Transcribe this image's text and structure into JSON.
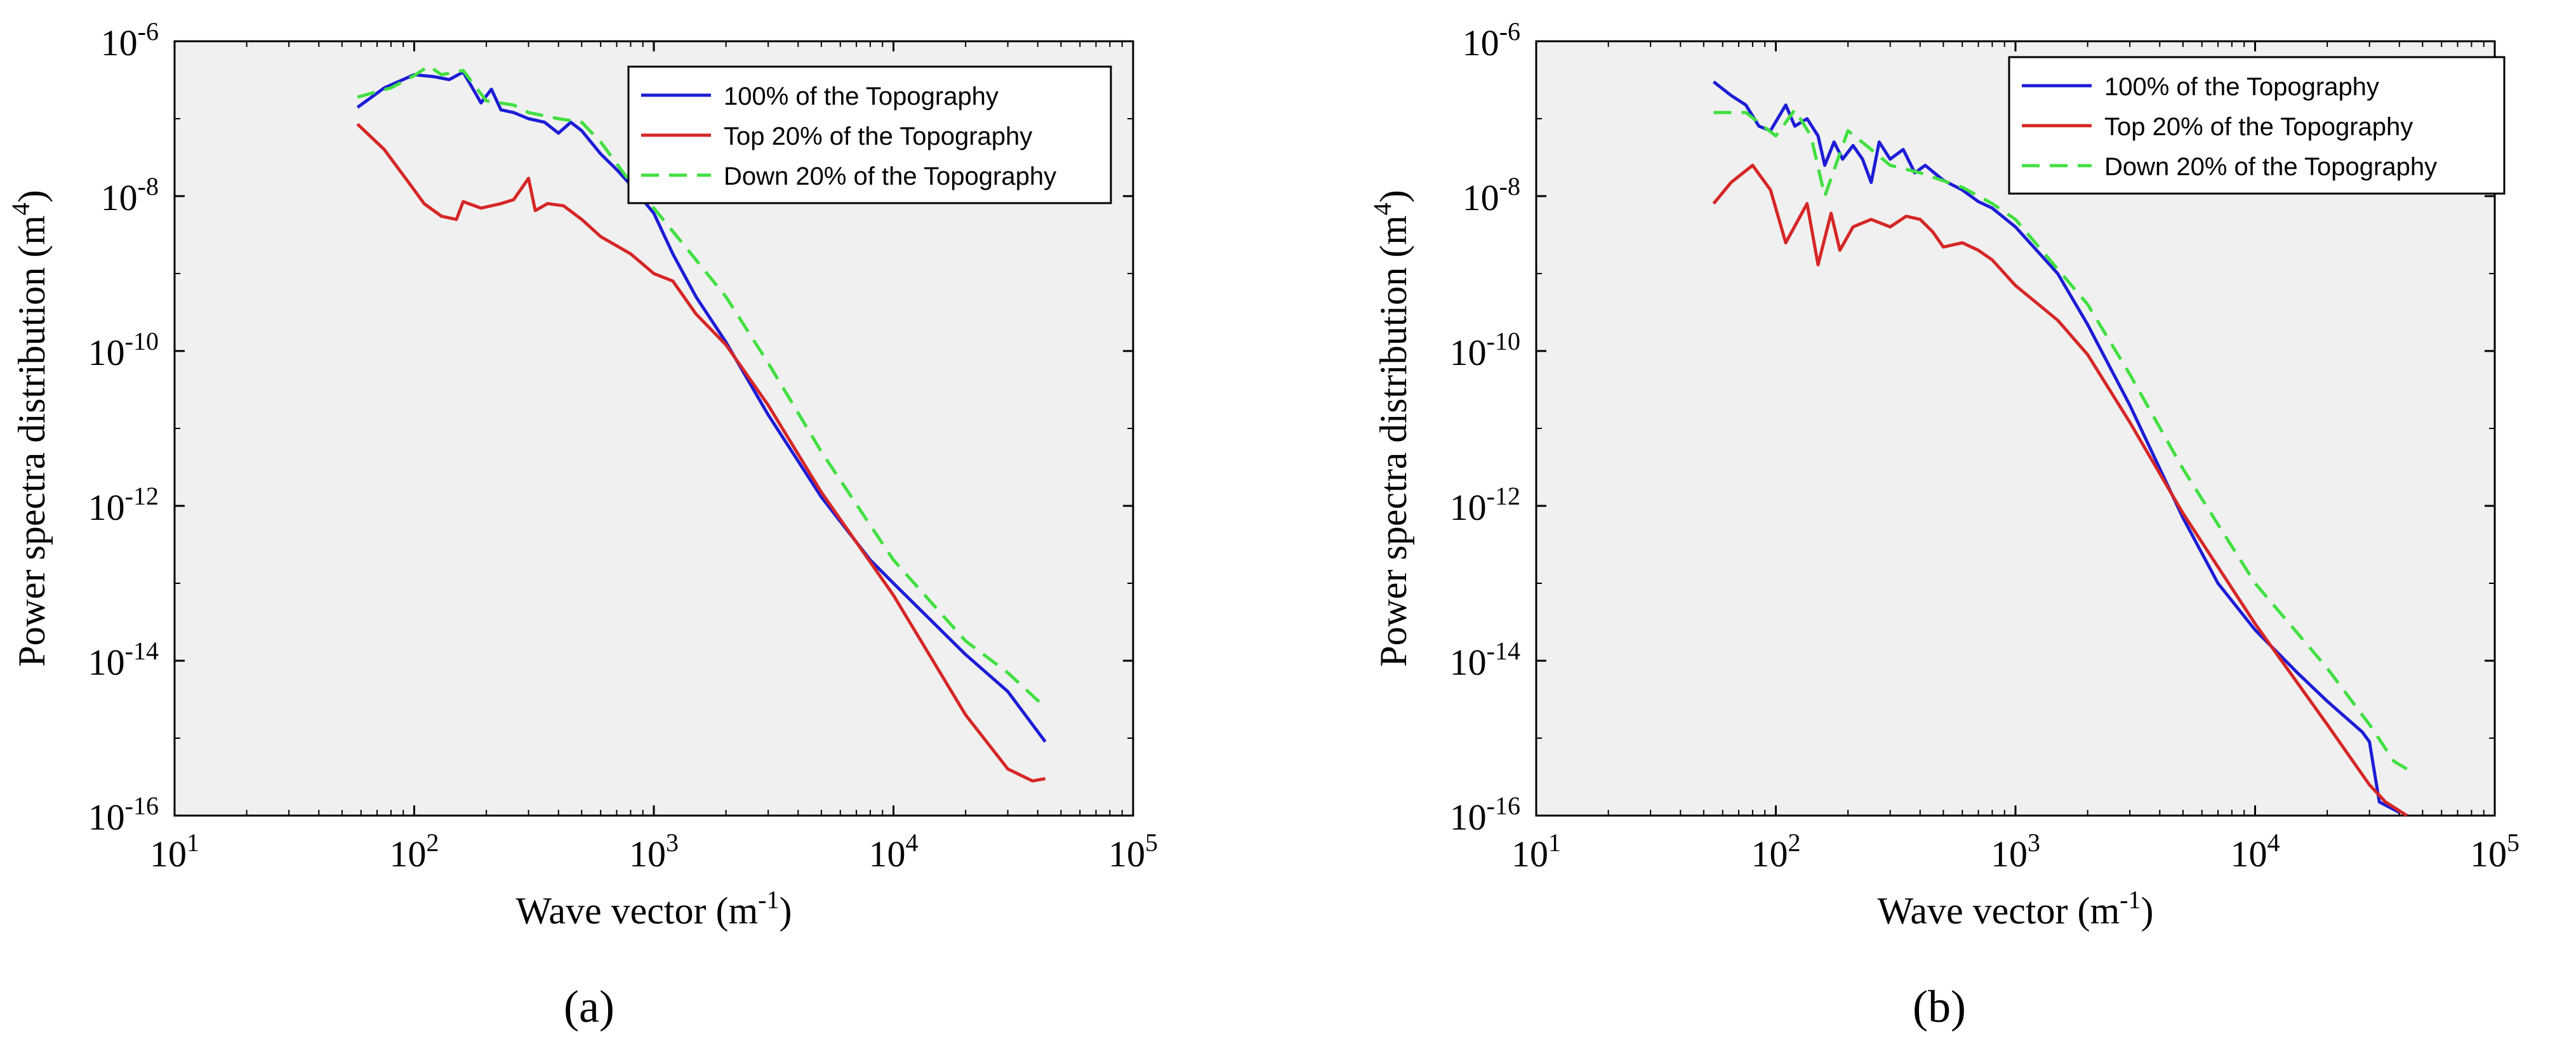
{
  "figure": {
    "panels": [
      {
        "label": "a",
        "caption": "(a)"
      },
      {
        "label": "b",
        "caption": "(b)"
      }
    ]
  },
  "chart_data": [
    {
      "panel": "a",
      "type": "line",
      "xscale": "log",
      "yscale": "log",
      "xlabel": "Wave vector (m",
      "xlabel_sup": "-1",
      "xlabel_end": ")",
      "ylabel": "Power spectra distribution (m",
      "ylabel_sup": "4",
      "ylabel_end": ")",
      "xlim": [
        10,
        100000
      ],
      "ylim": [
        1e-16,
        1e-06
      ],
      "xticks": [
        {
          "value": 10,
          "base": "10",
          "exp": "1"
        },
        {
          "value": 100,
          "base": "10",
          "exp": "2"
        },
        {
          "value": 1000,
          "base": "10",
          "exp": "3"
        },
        {
          "value": 10000,
          "base": "10",
          "exp": "4"
        },
        {
          "value": 100000,
          "base": "10",
          "exp": "5"
        }
      ],
      "yticks": [
        {
          "value": 1e-16,
          "base": "10",
          "exp": "-16"
        },
        {
          "value": 1e-14,
          "base": "10",
          "exp": "-14"
        },
        {
          "value": 1e-12,
          "base": "10",
          "exp": "-12"
        },
        {
          "value": 1e-10,
          "base": "10",
          "exp": "-10"
        },
        {
          "value": 1e-08,
          "base": "10",
          "exp": "-8"
        },
        {
          "value": 1e-06,
          "base": "10",
          "exp": "-6"
        }
      ],
      "legend_position": "top-right",
      "series": [
        {
          "name": "100% of the Topography",
          "color": "#1c1cd6",
          "dash": "solid",
          "points": [
            [
              58,
              1.4e-07
            ],
            [
              75,
              2.5e-07
            ],
            [
              100,
              3.7e-07
            ],
            [
              120,
              3.5e-07
            ],
            [
              140,
              3.2e-07
            ],
            [
              160,
              4e-07
            ],
            [
              175,
              2.5e-07
            ],
            [
              190,
              1.6e-07
            ],
            [
              210,
              2.4e-07
            ],
            [
              230,
              1.3e-07
            ],
            [
              260,
              1.2e-07
            ],
            [
              300,
              1e-07
            ],
            [
              350,
              9e-08
            ],
            [
              400,
              6.5e-08
            ],
            [
              450,
              9e-08
            ],
            [
              500,
              7e-08
            ],
            [
              600,
              3.5e-08
            ],
            [
              700,
              2.2e-08
            ],
            [
              800,
              1.4e-08
            ],
            [
              1000,
              6e-09
            ],
            [
              1200,
              1.8e-09
            ],
            [
              1500,
              5e-10
            ],
            [
              2000,
              1.3e-10
            ],
            [
              3000,
              1.5e-11
            ],
            [
              5000,
              1.3e-12
            ],
            [
              8000,
              2e-13
            ],
            [
              10000,
              1e-13
            ],
            [
              20000,
              1.2e-14
            ],
            [
              30000,
              4e-15
            ],
            [
              43000,
              9e-16
            ]
          ]
        },
        {
          "name": "Top 20% of the Topography",
          "color": "#d62626",
          "dash": "solid",
          "points": [
            [
              58,
              8.5e-08
            ],
            [
              75,
              4e-08
            ],
            [
              100,
              1.2e-08
            ],
            [
              110,
              8e-09
            ],
            [
              130,
              5.5e-09
            ],
            [
              150,
              5e-09
            ],
            [
              160,
              8.5e-09
            ],
            [
              190,
              7e-09
            ],
            [
              230,
              8e-09
            ],
            [
              260,
              9e-09
            ],
            [
              300,
              1.7e-08
            ],
            [
              320,
              6.5e-09
            ],
            [
              360,
              8e-09
            ],
            [
              420,
              7.5e-09
            ],
            [
              500,
              5e-09
            ],
            [
              600,
              3e-09
            ],
            [
              800,
              1.8e-09
            ],
            [
              1000,
              1e-09
            ],
            [
              1200,
              8e-10
            ],
            [
              1500,
              3e-10
            ],
            [
              2000,
              1.2e-10
            ],
            [
              3000,
              2e-11
            ],
            [
              5000,
              1.5e-12
            ],
            [
              10000,
              7e-14
            ],
            [
              20000,
              2e-15
            ],
            [
              30000,
              4e-16
            ],
            [
              38000,
              2.8e-16
            ],
            [
              43000,
              3e-16
            ]
          ]
        },
        {
          "name": "Down 20% of the Topography",
          "color": "#40e040",
          "dash": "dashed",
          "points": [
            [
              58,
              1.9e-07
            ],
            [
              80,
              2.5e-07
            ],
            [
              100,
              3.6e-07
            ],
            [
              115,
              4.8e-07
            ],
            [
              130,
              3.7e-07
            ],
            [
              160,
              4.2e-07
            ],
            [
              200,
              1.7e-07
            ],
            [
              260,
              1.5e-07
            ],
            [
              300,
              1.2e-07
            ],
            [
              400,
              1e-07
            ],
            [
              500,
              9e-08
            ],
            [
              600,
              5e-08
            ],
            [
              800,
              1.5e-08
            ],
            [
              1000,
              7e-09
            ],
            [
              1500,
              1.5e-09
            ],
            [
              2000,
              5e-10
            ],
            [
              3000,
              7e-11
            ],
            [
              5000,
              5e-12
            ],
            [
              10000,
              2e-13
            ],
            [
              20000,
              1.8e-14
            ],
            [
              30000,
              7e-15
            ],
            [
              43000,
              2.5e-15
            ]
          ]
        }
      ]
    },
    {
      "panel": "b",
      "type": "line",
      "xscale": "log",
      "yscale": "log",
      "xlabel": "Wave vector (m",
      "xlabel_sup": "-1",
      "xlabel_end": ")",
      "ylabel": "Power spectra distribution (m",
      "ylabel_sup": "4",
      "ylabel_end": ")",
      "xlim": [
        10,
        100000
      ],
      "ylim": [
        1e-16,
        1e-06
      ],
      "xticks": [
        {
          "value": 10,
          "base": "10",
          "exp": "1"
        },
        {
          "value": 100,
          "base": "10",
          "exp": "2"
        },
        {
          "value": 1000,
          "base": "10",
          "exp": "3"
        },
        {
          "value": 10000,
          "base": "10",
          "exp": "4"
        },
        {
          "value": 100000,
          "base": "10",
          "exp": "5"
        }
      ],
      "yticks": [
        {
          "value": 1e-16,
          "base": "10",
          "exp": "-16"
        },
        {
          "value": 1e-14,
          "base": "10",
          "exp": "-14"
        },
        {
          "value": 1e-12,
          "base": "10",
          "exp": "-12"
        },
        {
          "value": 1e-10,
          "base": "10",
          "exp": "-10"
        },
        {
          "value": 1e-08,
          "base": "10",
          "exp": "-8"
        },
        {
          "value": 1e-06,
          "base": "10",
          "exp": "-6"
        }
      ],
      "legend_position": "top-right",
      "series": [
        {
          "name": "100% of the Topography",
          "color": "#1c1cd6",
          "dash": "solid",
          "points": [
            [
              55,
              3e-07
            ],
            [
              65,
              2e-07
            ],
            [
              75,
              1.5e-07
            ],
            [
              85,
              8e-08
            ],
            [
              95,
              7e-08
            ],
            [
              110,
              1.5e-07
            ],
            [
              120,
              8e-08
            ],
            [
              135,
              1e-07
            ],
            [
              150,
              6e-08
            ],
            [
              160,
              2.5e-08
            ],
            [
              175,
              5e-08
            ],
            [
              190,
              3e-08
            ],
            [
              210,
              4.5e-08
            ],
            [
              230,
              3e-08
            ],
            [
              250,
              1.5e-08
            ],
            [
              270,
              5e-08
            ],
            [
              300,
              3e-08
            ],
            [
              340,
              4e-08
            ],
            [
              380,
              2e-08
            ],
            [
              420,
              2.5e-08
            ],
            [
              500,
              1.6e-08
            ],
            [
              600,
              1.2e-08
            ],
            [
              700,
              8.5e-09
            ],
            [
              800,
              7e-09
            ],
            [
              1000,
              4e-09
            ],
            [
              1500,
              1e-09
            ],
            [
              2000,
              2.2e-10
            ],
            [
              3000,
              2e-11
            ],
            [
              5000,
              7e-13
            ],
            [
              7000,
              1e-13
            ],
            [
              10000,
              2.5e-14
            ],
            [
              15000,
              7e-15
            ],
            [
              20000,
              3e-15
            ],
            [
              28000,
              1.2e-15
            ],
            [
              30000,
              9e-16
            ],
            [
              33000,
              1.5e-16
            ],
            [
              40000,
              1.1e-16
            ]
          ]
        },
        {
          "name": "Top 20% of the Topography",
          "color": "#d62626",
          "dash": "solid",
          "points": [
            [
              55,
              8e-09
            ],
            [
              65,
              1.5e-08
            ],
            [
              80,
              2.5e-08
            ],
            [
              95,
              1.2e-08
            ],
            [
              110,
              2.5e-09
            ],
            [
              135,
              8e-09
            ],
            [
              150,
              1.3e-09
            ],
            [
              170,
              6e-09
            ],
            [
              185,
              2e-09
            ],
            [
              210,
              4e-09
            ],
            [
              250,
              5e-09
            ],
            [
              300,
              4e-09
            ],
            [
              350,
              5.5e-09
            ],
            [
              400,
              5e-09
            ],
            [
              450,
              3.5e-09
            ],
            [
              500,
              2.2e-09
            ],
            [
              600,
              2.5e-09
            ],
            [
              700,
              2e-09
            ],
            [
              800,
              1.5e-09
            ],
            [
              1000,
              7e-10
            ],
            [
              1500,
              2.5e-10
            ],
            [
              2000,
              9e-11
            ],
            [
              3000,
              1.2e-11
            ],
            [
              5000,
              8e-13
            ],
            [
              10000,
              3e-14
            ],
            [
              20000,
              1.5e-15
            ],
            [
              30000,
              2.5e-16
            ],
            [
              35000,
              1.5e-16
            ],
            [
              43000,
              1e-16
            ]
          ]
        },
        {
          "name": "Down 20% of the Topography",
          "color": "#40e040",
          "dash": "dashed",
          "points": [
            [
              55,
              1.2e-07
            ],
            [
              75,
              1.2e-07
            ],
            [
              100,
              6e-08
            ],
            [
              120,
              1.3e-07
            ],
            [
              140,
              6e-08
            ],
            [
              160,
              1e-08
            ],
            [
              200,
              7e-08
            ],
            [
              250,
              4e-08
            ],
            [
              300,
              2.5e-08
            ],
            [
              400,
              2e-08
            ],
            [
              600,
              1.3e-08
            ],
            [
              800,
              8e-09
            ],
            [
              1000,
              5e-09
            ],
            [
              2000,
              4e-10
            ],
            [
              3000,
              5e-11
            ],
            [
              5000,
              3e-12
            ],
            [
              10000,
              1e-13
            ],
            [
              20000,
              8e-15
            ],
            [
              30000,
              1.5e-15
            ],
            [
              38000,
              5e-16
            ],
            [
              43000,
              4e-16
            ]
          ]
        }
      ]
    }
  ]
}
